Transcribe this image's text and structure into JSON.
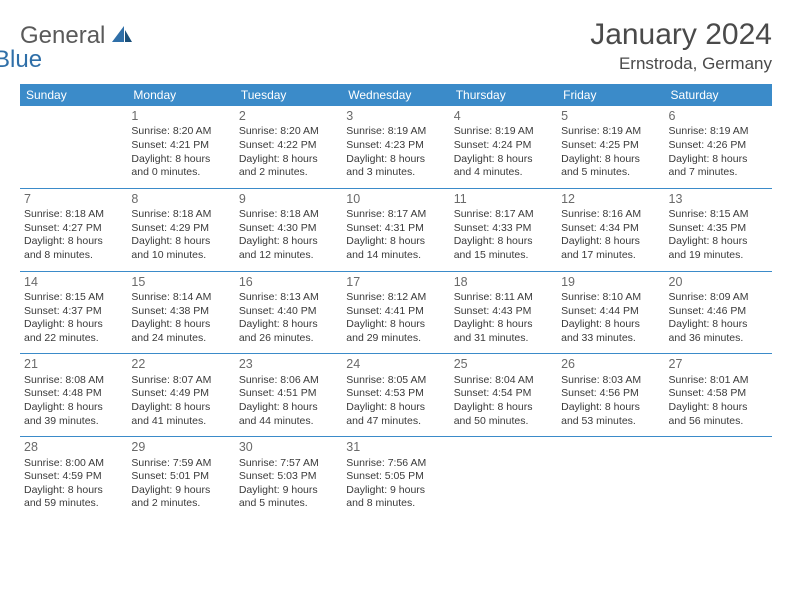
{
  "brand": {
    "part1": "General",
    "part2": "Blue"
  },
  "title": "January 2024",
  "subtitle": "Ernstroda, Germany",
  "colors": {
    "header_bg": "#3b8bc9",
    "header_text": "#ffffff",
    "border": "#3b8bc9",
    "text": "#3a3a3a",
    "daynum": "#6a6a6a",
    "brand_gray": "#5a5a5a",
    "brand_blue": "#2f6fa8"
  },
  "typography": {
    "title_fontsize": 30,
    "subtitle_fontsize": 17,
    "header_fontsize": 12,
    "cell_fontsize": 10.5,
    "daynum_fontsize": 12.5
  },
  "days_of_week": [
    "Sunday",
    "Monday",
    "Tuesday",
    "Wednesday",
    "Thursday",
    "Friday",
    "Saturday"
  ],
  "weeks": [
    [
      null,
      {
        "n": "1",
        "sr": "Sunrise: 8:20 AM",
        "ss": "Sunset: 4:21 PM",
        "d1": "Daylight: 8 hours",
        "d2": "and 0 minutes."
      },
      {
        "n": "2",
        "sr": "Sunrise: 8:20 AM",
        "ss": "Sunset: 4:22 PM",
        "d1": "Daylight: 8 hours",
        "d2": "and 2 minutes."
      },
      {
        "n": "3",
        "sr": "Sunrise: 8:19 AM",
        "ss": "Sunset: 4:23 PM",
        "d1": "Daylight: 8 hours",
        "d2": "and 3 minutes."
      },
      {
        "n": "4",
        "sr": "Sunrise: 8:19 AM",
        "ss": "Sunset: 4:24 PM",
        "d1": "Daylight: 8 hours",
        "d2": "and 4 minutes."
      },
      {
        "n": "5",
        "sr": "Sunrise: 8:19 AM",
        "ss": "Sunset: 4:25 PM",
        "d1": "Daylight: 8 hours",
        "d2": "and 5 minutes."
      },
      {
        "n": "6",
        "sr": "Sunrise: 8:19 AM",
        "ss": "Sunset: 4:26 PM",
        "d1": "Daylight: 8 hours",
        "d2": "and 7 minutes."
      }
    ],
    [
      {
        "n": "7",
        "sr": "Sunrise: 8:18 AM",
        "ss": "Sunset: 4:27 PM",
        "d1": "Daylight: 8 hours",
        "d2": "and 8 minutes."
      },
      {
        "n": "8",
        "sr": "Sunrise: 8:18 AM",
        "ss": "Sunset: 4:29 PM",
        "d1": "Daylight: 8 hours",
        "d2": "and 10 minutes."
      },
      {
        "n": "9",
        "sr": "Sunrise: 8:18 AM",
        "ss": "Sunset: 4:30 PM",
        "d1": "Daylight: 8 hours",
        "d2": "and 12 minutes."
      },
      {
        "n": "10",
        "sr": "Sunrise: 8:17 AM",
        "ss": "Sunset: 4:31 PM",
        "d1": "Daylight: 8 hours",
        "d2": "and 14 minutes."
      },
      {
        "n": "11",
        "sr": "Sunrise: 8:17 AM",
        "ss": "Sunset: 4:33 PM",
        "d1": "Daylight: 8 hours",
        "d2": "and 15 minutes."
      },
      {
        "n": "12",
        "sr": "Sunrise: 8:16 AM",
        "ss": "Sunset: 4:34 PM",
        "d1": "Daylight: 8 hours",
        "d2": "and 17 minutes."
      },
      {
        "n": "13",
        "sr": "Sunrise: 8:15 AM",
        "ss": "Sunset: 4:35 PM",
        "d1": "Daylight: 8 hours",
        "d2": "and 19 minutes."
      }
    ],
    [
      {
        "n": "14",
        "sr": "Sunrise: 8:15 AM",
        "ss": "Sunset: 4:37 PM",
        "d1": "Daylight: 8 hours",
        "d2": "and 22 minutes."
      },
      {
        "n": "15",
        "sr": "Sunrise: 8:14 AM",
        "ss": "Sunset: 4:38 PM",
        "d1": "Daylight: 8 hours",
        "d2": "and 24 minutes."
      },
      {
        "n": "16",
        "sr": "Sunrise: 8:13 AM",
        "ss": "Sunset: 4:40 PM",
        "d1": "Daylight: 8 hours",
        "d2": "and 26 minutes."
      },
      {
        "n": "17",
        "sr": "Sunrise: 8:12 AM",
        "ss": "Sunset: 4:41 PM",
        "d1": "Daylight: 8 hours",
        "d2": "and 29 minutes."
      },
      {
        "n": "18",
        "sr": "Sunrise: 8:11 AM",
        "ss": "Sunset: 4:43 PM",
        "d1": "Daylight: 8 hours",
        "d2": "and 31 minutes."
      },
      {
        "n": "19",
        "sr": "Sunrise: 8:10 AM",
        "ss": "Sunset: 4:44 PM",
        "d1": "Daylight: 8 hours",
        "d2": "and 33 minutes."
      },
      {
        "n": "20",
        "sr": "Sunrise: 8:09 AM",
        "ss": "Sunset: 4:46 PM",
        "d1": "Daylight: 8 hours",
        "d2": "and 36 minutes."
      }
    ],
    [
      {
        "n": "21",
        "sr": "Sunrise: 8:08 AM",
        "ss": "Sunset: 4:48 PM",
        "d1": "Daylight: 8 hours",
        "d2": "and 39 minutes."
      },
      {
        "n": "22",
        "sr": "Sunrise: 8:07 AM",
        "ss": "Sunset: 4:49 PM",
        "d1": "Daylight: 8 hours",
        "d2": "and 41 minutes."
      },
      {
        "n": "23",
        "sr": "Sunrise: 8:06 AM",
        "ss": "Sunset: 4:51 PM",
        "d1": "Daylight: 8 hours",
        "d2": "and 44 minutes."
      },
      {
        "n": "24",
        "sr": "Sunrise: 8:05 AM",
        "ss": "Sunset: 4:53 PM",
        "d1": "Daylight: 8 hours",
        "d2": "and 47 minutes."
      },
      {
        "n": "25",
        "sr": "Sunrise: 8:04 AM",
        "ss": "Sunset: 4:54 PM",
        "d1": "Daylight: 8 hours",
        "d2": "and 50 minutes."
      },
      {
        "n": "26",
        "sr": "Sunrise: 8:03 AM",
        "ss": "Sunset: 4:56 PM",
        "d1": "Daylight: 8 hours",
        "d2": "and 53 minutes."
      },
      {
        "n": "27",
        "sr": "Sunrise: 8:01 AM",
        "ss": "Sunset: 4:58 PM",
        "d1": "Daylight: 8 hours",
        "d2": "and 56 minutes."
      }
    ],
    [
      {
        "n": "28",
        "sr": "Sunrise: 8:00 AM",
        "ss": "Sunset: 4:59 PM",
        "d1": "Daylight: 8 hours",
        "d2": "and 59 minutes."
      },
      {
        "n": "29",
        "sr": "Sunrise: 7:59 AM",
        "ss": "Sunset: 5:01 PM",
        "d1": "Daylight: 9 hours",
        "d2": "and 2 minutes."
      },
      {
        "n": "30",
        "sr": "Sunrise: 7:57 AM",
        "ss": "Sunset: 5:03 PM",
        "d1": "Daylight: 9 hours",
        "d2": "and 5 minutes."
      },
      {
        "n": "31",
        "sr": "Sunrise: 7:56 AM",
        "ss": "Sunset: 5:05 PM",
        "d1": "Daylight: 9 hours",
        "d2": "and 8 minutes."
      },
      null,
      null,
      null
    ]
  ]
}
